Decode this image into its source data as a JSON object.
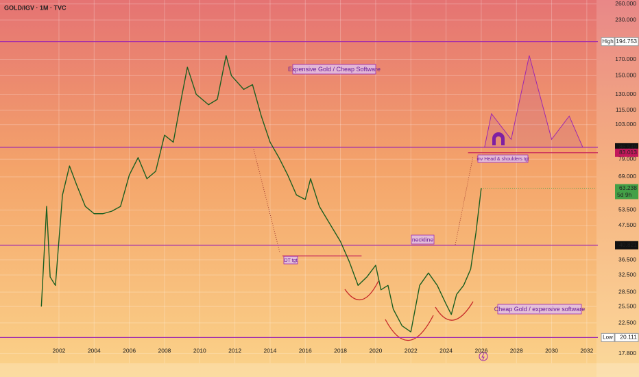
{
  "chart_data": {
    "type": "line",
    "title": "GOLD/IGV · 1M · TVC",
    "log_scale": true,
    "grid": true,
    "xlim": [
      1998.65,
      2032.55
    ],
    "ylim": [
      16.5,
      268
    ],
    "xticks": [
      2002,
      2004,
      2006,
      2008,
      2010,
      2012,
      2014,
      2016,
      2018,
      2020,
      2022,
      2024,
      2026,
      2028,
      2030,
      2032
    ],
    "yticks": [
      {
        "value": 17.8,
        "label": "17.800"
      },
      {
        "value": 22.5,
        "label": "22.500"
      },
      {
        "value": 25.5,
        "label": "25.500"
      },
      {
        "value": 28.5,
        "label": "28.500"
      },
      {
        "value": 32.5,
        "label": "32.500"
      },
      {
        "value": 36.5,
        "label": "36.500"
      },
      {
        "value": 47.5,
        "label": "47.500"
      },
      {
        "value": 53.5,
        "label": "53.500"
      },
      {
        "value": 69,
        "label": "69.000"
      },
      {
        "value": 79,
        "label": "79.000"
      },
      {
        "value": 103,
        "label": "103.000"
      },
      {
        "value": 115,
        "label": "115.000"
      },
      {
        "value": 130,
        "label": "130.000"
      },
      {
        "value": 150,
        "label": "150.000"
      },
      {
        "value": 170,
        "label": "170.000"
      },
      {
        "value": 230,
        "label": "230.000"
      },
      {
        "value": 260,
        "label": "260.000"
      }
    ],
    "series": [
      {
        "color": "#1b5e20",
        "x": [
          2001.0,
          2001.3,
          2001.5,
          2001.8,
          2002.2,
          2002.6,
          2003.0,
          2003.5,
          2004.0,
          2004.5,
          2005.0,
          2005.5,
          2006.0,
          2006.5,
          2007.0,
          2007.5,
          2008.0,
          2008.5,
          2009.0,
          2009.3,
          2009.8,
          2010.5,
          2011.0,
          2011.5,
          2011.8,
          2012.5,
          2013.0,
          2013.5,
          2014.0,
          2014.5,
          2015.0,
          2015.5,
          2016.0,
          2016.3,
          2016.8,
          2017.5,
          2018.0,
          2018.5,
          2019.0,
          2019.5,
          2020.0,
          2020.3,
          2020.7,
          2021.0,
          2021.5,
          2022.0,
          2022.3,
          2022.5,
          2023.0,
          2023.5,
          2024.0,
          2024.3,
          2024.6,
          2025.0,
          2025.4,
          2025.7,
          2026.0
        ],
        "values": [
          25.5,
          55,
          32,
          30,
          60,
          75,
          65,
          55,
          52,
          52,
          53,
          55,
          70,
          80,
          68,
          72,
          95,
          90,
          130,
          160,
          130,
          120,
          125,
          175,
          150,
          135,
          140,
          110,
          90,
          80,
          70,
          60,
          58,
          68,
          55,
          47,
          42,
          36,
          30,
          32,
          35,
          29,
          30,
          25,
          22,
          21,
          26,
          30,
          33,
          30,
          26,
          24,
          28,
          30,
          34,
          45,
          63.238
        ]
      }
    ],
    "projection": {
      "color": "#9c27b0",
      "x": [
        2026.19,
        2026.58,
        2027.7,
        2028.73,
        2030.0,
        2031.0,
        2031.77
      ],
      "values": [
        86.549,
        112,
        92,
        175,
        92,
        110,
        86.549
      ]
    },
    "levels": [
      {
        "value": 194.753,
        "label": "194.753",
        "tag": "High",
        "color": "#9c27b0"
      },
      {
        "value": 86.549,
        "label": "86.549",
        "color": "#9c27b0"
      },
      {
        "value": 83.013,
        "label": "83.013",
        "color": "#c2185b",
        "from": 2025.25
      },
      {
        "value": 40.821,
        "label": "40.821",
        "color": "#9c27b0"
      },
      {
        "value": 20.111,
        "label": "20.111",
        "tag": "Low",
        "color": "#9c27b0"
      }
    ],
    "last_price": {
      "value": 63.238,
      "label": "63.238",
      "countdown": "5d 9h",
      "color": "#43a047"
    },
    "dt_target": {
      "value": 37.6,
      "x": [
        2014.7,
        2019.2
      ],
      "color": "#c2185b"
    },
    "annotations": [
      "Expensive Gold / Cheap Software",
      "Cheap Gold / expensive software",
      "neckline",
      "DT tgt",
      "inv Head & shoulders tgt"
    ]
  }
}
